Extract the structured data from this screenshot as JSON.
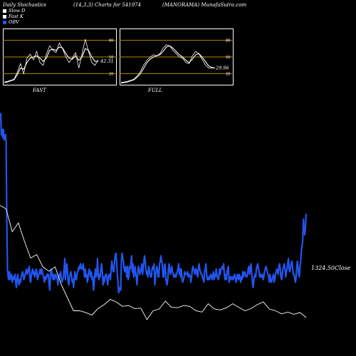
{
  "header": {
    "left": "Daily Stochastics",
    "params": "(14,3,3) Charts for 541974",
    "company": "(MANORAMA) MunafaSutra.com"
  },
  "legend": [
    {
      "label": "Slow  D",
      "color": "#ffffff"
    },
    {
      "label": "Fast K",
      "color": "#ffffff"
    },
    {
      "label": "OBV",
      "color": "#2255ee"
    }
  ],
  "panels": {
    "fast": {
      "title": "FAST",
      "value_label": "42.31"
    },
    "full": {
      "title": "FULL",
      "value_label": "29.96"
    },
    "levels": [
      "80",
      "50",
      "20"
    ]
  },
  "close_label": "1324.50Close",
  "colors": {
    "obv": "#2255ee",
    "price": "#ffffff",
    "level": "#b8860b",
    "background": "#000000"
  },
  "chart_data": [
    {
      "type": "line",
      "title": "FAST",
      "ylim": [
        0,
        100
      ],
      "reference_lines": [
        80,
        50,
        20
      ],
      "series": [
        {
          "name": "Fast K",
          "values": [
            5,
            6,
            8,
            10,
            22,
            38,
            20,
            48,
            55,
            45,
            60,
            40,
            35,
            55,
            70,
            62,
            58,
            75,
            65,
            50,
            40,
            48,
            58,
            30,
            55,
            82,
            60,
            40,
            35,
            45
          ]
        },
        {
          "name": "Slow  D",
          "values": [
            4,
            5,
            7,
            9,
            18,
            30,
            28,
            40,
            48,
            50,
            52,
            48,
            42,
            48,
            62,
            64,
            62,
            68,
            66,
            56,
            48,
            46,
            52,
            44,
            50,
            65,
            62,
            50,
            42,
            42.31
          ]
        }
      ]
    },
    {
      "type": "line",
      "title": "FULL",
      "ylim": [
        0,
        100
      ],
      "reference_lines": [
        80,
        50,
        20
      ],
      "series": [
        {
          "name": "Fast K",
          "values": [
            4,
            5,
            6,
            8,
            10,
            16,
            24,
            36,
            44,
            50,
            54,
            52,
            56,
            66,
            72,
            70,
            62,
            56,
            50,
            48,
            40,
            38,
            52,
            60,
            56,
            46,
            36,
            30,
            30,
            29.96
          ]
        },
        {
          "name": "Slow  D",
          "values": [
            3,
            4,
            5,
            7,
            9,
            14,
            20,
            30,
            40,
            46,
            50,
            52,
            54,
            60,
            68,
            70,
            66,
            60,
            54,
            50,
            44,
            40,
            46,
            54,
            56,
            50,
            42,
            34,
            31,
            29.96
          ]
        }
      ]
    },
    {
      "type": "line",
      "title": "",
      "ylim": [
        0,
        100
      ],
      "series": [
        {
          "name": "OBV",
          "values": [
            92,
            92,
            84,
            86,
            83,
            86,
            82,
            84,
            84,
            81,
            50,
            33,
            30,
            29,
            32,
            29,
            30,
            31,
            28,
            30,
            29,
            30,
            31,
            28,
            26,
            29,
            31,
            28,
            27,
            29,
            28,
            30,
            31,
            32,
            31,
            29,
            30,
            31,
            32,
            33,
            31,
            32,
            33,
            34,
            29,
            28,
            31,
            32,
            33,
            31,
            32,
            30,
            31,
            33,
            32,
            29,
            30,
            31,
            32,
            33,
            31,
            33,
            32,
            31,
            30,
            28,
            30,
            29,
            30,
            31,
            30,
            31,
            27,
            25,
            30,
            33,
            32,
            30,
            29,
            31,
            29,
            30,
            31,
            30,
            29,
            27,
            30,
            31,
            30,
            32,
            29,
            28,
            29,
            30,
            33,
            37,
            29,
            33,
            35,
            32,
            28,
            27,
            30,
            31,
            32,
            30,
            28,
            29,
            26,
            30,
            32,
            29,
            29,
            31,
            32,
            33,
            34,
            33,
            35,
            34,
            33,
            33,
            35,
            33,
            30,
            33,
            30,
            31,
            28,
            29,
            32,
            33,
            31,
            30,
            32,
            29,
            30,
            25,
            27,
            31,
            33,
            30,
            31,
            37,
            31,
            29,
            31,
            30,
            33,
            35,
            32,
            27,
            30,
            28,
            30,
            31,
            31,
            29,
            27,
            30,
            31,
            31,
            29,
            33,
            36,
            34,
            32,
            32,
            36,
            38,
            39,
            36,
            31,
            28,
            24,
            25,
            26,
            25,
            36,
            39,
            37,
            36,
            33,
            32,
            34,
            33,
            30,
            34,
            29,
            30,
            34,
            33,
            35,
            38,
            32,
            35,
            30,
            31,
            34,
            31,
            30,
            27,
            32,
            34,
            33,
            31,
            32,
            33,
            35,
            31,
            33,
            36,
            38,
            36,
            33,
            31,
            32,
            30,
            34,
            33,
            31,
            30,
            30,
            33,
            34,
            33,
            35,
            27,
            30,
            32,
            34,
            33,
            30,
            30,
            35,
            36,
            38,
            36,
            35,
            30,
            30,
            34,
            35,
            30,
            28,
            27,
            29,
            33,
            35,
            32,
            31,
            33,
            34,
            32,
            31,
            30,
            30,
            31,
            30,
            31,
            32,
            33,
            35,
            31,
            33,
            30,
            33,
            29,
            28,
            29,
            30,
            32,
            31,
            31,
            31,
            32,
            30,
            31,
            31,
            30,
            28,
            30,
            33,
            34,
            33,
            32,
            31,
            33,
            33,
            31,
            30,
            33,
            35,
            33,
            32,
            31,
            31,
            30,
            29,
            28,
            32,
            33,
            35,
            31,
            29,
            29,
            30,
            29,
            30,
            31,
            30,
            29,
            31,
            32,
            29,
            31,
            30,
            33,
            31,
            30,
            29,
            30,
            33,
            31,
            33,
            33,
            34,
            33,
            35,
            31,
            29,
            31,
            29,
            32,
            33,
            34,
            28,
            29,
            30,
            30,
            29,
            30,
            29,
            30,
            31,
            30,
            28,
            29,
            31,
            30,
            29,
            31,
            30,
            28,
            30,
            29,
            32,
            30,
            31,
            32,
            31,
            30,
            30,
            31,
            33,
            34,
            31,
            33,
            35,
            32,
            29,
            26,
            28,
            30,
            31,
            30,
            33,
            34,
            35,
            33,
            32,
            30,
            31,
            30,
            30,
            31,
            29,
            30,
            32,
            33,
            34,
            33,
            32,
            31,
            30,
            28,
            31,
            29,
            28,
            29,
            30,
            31,
            28,
            29,
            31,
            32,
            33,
            32,
            31,
            34,
            35,
            33,
            30,
            29,
            31,
            33,
            34,
            35,
            33,
            30,
            32,
            33,
            35,
            37,
            33,
            32,
            33,
            35,
            36,
            34,
            31,
            31,
            30,
            28,
            29,
            33,
            36,
            34,
            31,
            30,
            34,
            36,
            40,
            42,
            44,
            52,
            48,
            46,
            49,
            54
          ]
        },
        {
          "name": "Close",
          "values": [
            1580,
            1572,
            1520,
            1540,
            1498,
            1460,
            1468,
            1440,
            1430,
            1440,
            1400,
            1370,
            1340,
            1340,
            1336,
            1330,
            1345,
            1354,
            1366,
            1360,
            1350,
            1352,
            1345,
            1346,
            1320,
            1340,
            1344,
            1362,
            1348,
            1347,
            1352,
            1350,
            1340,
            1337,
            1356,
            1344,
            1342,
            1347,
            1356,
            1348,
            1340,
            1345,
            1354,
            1360,
            1344,
            1340,
            1333,
            1337,
            1332,
            1336,
            1324.5
          ]
        }
      ]
    }
  ]
}
